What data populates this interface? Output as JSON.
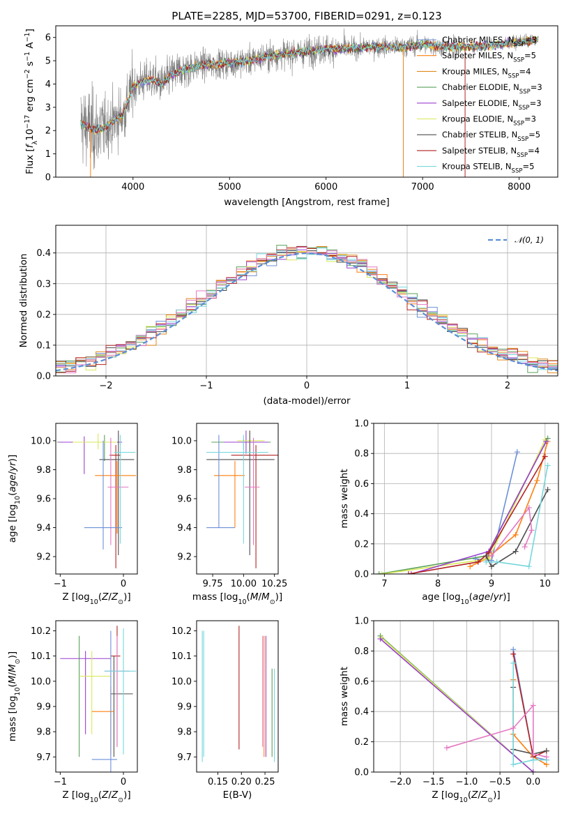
{
  "colors": {
    "chabrier_miles": "#6b8fd8",
    "salpeter_miles": "#ff7f0e",
    "kroupa_miles": "#e08a1e",
    "chabrier_elodie": "#5aa15a",
    "salpeter_elodie": "#9a3fcf",
    "kroupa_elodie": "#d9e85a",
    "chabrier_stelib": "#4d4d4d",
    "salpeter_stelib": "#b22222",
    "kroupa_stelib": "#76d7dc",
    "pink": "#e377c2",
    "data": "#808080",
    "normal": "#5b8fd6"
  },
  "chart_data": [
    {
      "id": "spectrum",
      "type": "line",
      "title": "PLATE=2285, MJD=53700, FIBERID=0291, z=0.123",
      "xlabel": "wavelength [Angstrom, rest frame]",
      "ylabel": "Flux [f_λ 10^-17 erg cm^-2 s^-1 A^-1]",
      "xlim": [
        3200,
        8400
      ],
      "ylim": [
        0,
        6.5
      ],
      "xticks": [
        4000,
        5000,
        6000,
        7000,
        8000
      ],
      "yticks": [
        0,
        1,
        2,
        3,
        4,
        5,
        6
      ],
      "legend_position": "right",
      "legend": [
        {
          "pre": "Chabrier MILES, N",
          "sub": "SSP",
          "post": "=3",
          "color": "chabrier_miles"
        },
        {
          "pre": "Salpeter MILES, N",
          "sub": "SSP",
          "post": "=5",
          "color": "salpeter_miles"
        },
        {
          "pre": "Kroupa MILES, N",
          "sub": "SSP",
          "post": "=4",
          "color": "kroupa_miles"
        },
        {
          "pre": "Chabrier ELODIE, N",
          "sub": "SSP",
          "post": "=3",
          "color": "chabrier_elodie"
        },
        {
          "pre": "Salpeter ELODIE, N",
          "sub": "SSP",
          "post": "=3",
          "color": "salpeter_elodie"
        },
        {
          "pre": "Kroupa ELODIE, N",
          "sub": "SSP",
          "post": "=3",
          "color": "kroupa_elodie"
        },
        {
          "pre": "Chabrier STELIB, N",
          "sub": "SSP",
          "post": "=5",
          "color": "chabrier_stelib"
        },
        {
          "pre": "Salpeter STELIB, N",
          "sub": "SSP",
          "post": "=4",
          "color": "salpeter_stelib"
        },
        {
          "pre": "Kroupa STELIB, N",
          "sub": "SSP",
          "post": "=5",
          "color": "kroupa_stelib"
        }
      ],
      "continuum": {
        "x": [
          3460,
          3600,
          3700,
          3800,
          3900,
          4000,
          4100,
          4200,
          4300,
          4400,
          4500,
          4700,
          5000,
          5200,
          5400,
          5600,
          5800,
          6000,
          6200,
          6500,
          6800,
          7000,
          7200,
          7500,
          7800,
          8000,
          8200
        ],
        "y": [
          2.3,
          2.0,
          2.1,
          2.4,
          2.7,
          3.9,
          4.1,
          4.2,
          4.0,
          4.4,
          4.6,
          4.8,
          4.9,
          5.0,
          5.2,
          5.3,
          5.4,
          5.5,
          5.5,
          5.6,
          5.6,
          5.7,
          5.6,
          5.6,
          5.7,
          5.8,
          5.9
        ]
      }
    },
    {
      "id": "residuals",
      "type": "line",
      "xlabel": "(data-model)/error",
      "ylabel": "Normed distribution",
      "xlim": [
        -2.5,
        2.5
      ],
      "ylim": [
        0,
        0.49
      ],
      "xticks": [
        -2,
        -1,
        0,
        1,
        2
      ],
      "yticks": [
        0.0,
        0.1,
        0.2,
        0.3,
        0.4
      ],
      "grid": true,
      "legend_position": "top-right",
      "legend_label": "𝒩(0, 1)",
      "bin_width": 0.1
    },
    {
      "id": "age_vs_Z",
      "type": "scatter",
      "xlabel": "Z [log10(Z/Z⊙)]",
      "ylabel": "age [log10(age/yr)]",
      "xlim": [
        -1.07,
        0.22
      ],
      "ylim": [
        9.08,
        10.12
      ],
      "xticks": [
        -1,
        0
      ],
      "yticks": [
        9.2,
        9.4,
        9.6,
        9.8,
        10.0
      ],
      "points": [
        {
          "x": -0.3,
          "xerr": [
            0.75,
            0.25
          ],
          "y": 9.99,
          "yerr": [
            0.13,
            0.05
          ],
          "color": "chabrier_elodie"
        },
        {
          "x": -0.62,
          "xerr": [
            0.4,
            0.6
          ],
          "y": 9.99,
          "yerr": [
            0.22,
            0.04
          ],
          "color": "salpeter_elodie"
        },
        {
          "x": -0.4,
          "xerr": [
            0.4,
            0.3
          ],
          "y": 9.99,
          "yerr": [
            0.05,
            0.06
          ],
          "color": "kroupa_elodie"
        },
        {
          "x": -0.12,
          "xerr": [
            0.1,
            0.08
          ],
          "y": 9.9,
          "yerr": [
            0.78,
            0.07
          ],
          "color": "salpeter_stelib"
        },
        {
          "x": -0.08,
          "xerr": [
            0.3,
            0.25
          ],
          "y": 9.87,
          "yerr": [
            0.66,
            0.2
          ],
          "color": "chabrier_stelib"
        },
        {
          "x": -0.1,
          "xerr": [
            0.35,
            0.3
          ],
          "y": 9.76,
          "yerr": [
            0.4,
            0.1
          ],
          "color": "salpeter_miles"
        },
        {
          "x": -0.2,
          "xerr": [
            0.05,
            0.28
          ],
          "y": 9.68,
          "yerr": [
            0.4,
            0.34
          ],
          "color": "pink"
        },
        {
          "x": -0.32,
          "xerr": [
            0.3,
            0.3
          ],
          "y": 9.4,
          "yerr": [
            0.15,
            0.6
          ],
          "color": "chabrier_miles"
        },
        {
          "x": -0.05,
          "xerr": [
            0.1,
            0.24
          ],
          "y": 9.92,
          "yerr": [
            0.63,
            0.12
          ],
          "color": "kroupa_stelib"
        }
      ]
    },
    {
      "id": "age_vs_mass",
      "type": "scatter",
      "xlabel": "mass [log10(M/M⊙)]",
      "ylabel": "",
      "xlim": [
        9.62,
        10.28
      ],
      "ylim": [
        9.08,
        10.12
      ],
      "xticks": [
        9.75,
        10.0,
        10.25
      ],
      "yticks": [
        9.2,
        9.4,
        9.6,
        9.8,
        10.0
      ],
      "points": [
        {
          "x": 10.0,
          "xerr": [
            0.26,
            0.22
          ],
          "y": 9.99,
          "yerr": [
            0.05,
            0.02
          ],
          "color": "chabrier_elodie"
        },
        {
          "x": 10.02,
          "xerr": [
            0.18,
            0.18
          ],
          "y": 9.99,
          "yerr": [
            0.08,
            0.08
          ],
          "color": "salpeter_elodie"
        },
        {
          "x": 10.05,
          "xerr": [
            0.1,
            0.12
          ],
          "y": 10.0,
          "yerr": [
            0.07,
            0.07
          ],
          "color": "kroupa_elodie"
        },
        {
          "x": 10.1,
          "xerr": [
            0.2,
            0.2
          ],
          "y": 9.9,
          "yerr": [
            0.78,
            0.07
          ],
          "color": "salpeter_stelib"
        },
        {
          "x": 10.05,
          "xerr": [
            0.35,
            0.2
          ],
          "y": 9.87,
          "yerr": [
            0.66,
            0.2
          ],
          "color": "chabrier_stelib"
        },
        {
          "x": 9.93,
          "xerr": [
            0.17,
            0.08
          ],
          "y": 9.76,
          "yerr": [
            0.36,
            0.1
          ],
          "color": "salpeter_miles"
        },
        {
          "x": 10.08,
          "xerr": [
            0.07,
            0.05
          ],
          "y": 9.68,
          "yerr": [
            0.4,
            0.34
          ],
          "color": "pink"
        },
        {
          "x": 9.8,
          "xerr": [
            0.1,
            0.13
          ],
          "y": 9.4,
          "yerr": [
            0.0,
            0.64
          ],
          "color": "chabrier_miles"
        },
        {
          "x": 10.0,
          "xerr": [
            0.3,
            0.2
          ],
          "y": 9.92,
          "yerr": [
            0.63,
            0.12
          ],
          "color": "kroupa_stelib"
        }
      ]
    },
    {
      "id": "mass_weight_vs_age",
      "type": "line",
      "xlabel": "age [log10(age/yr)]",
      "ylabel": "mass weight",
      "xlim": [
        6.8,
        10.25
      ],
      "ylim": [
        0,
        1.0
      ],
      "xticks": [
        7,
        8,
        9,
        10
      ],
      "yticks": [
        0.0,
        0.2,
        0.4,
        0.6,
        0.8,
        1.0
      ],
      "grid": true,
      "series": [
        {
          "color": "chabrier_miles",
          "x": [
            8.7,
            9.0,
            9.48
          ],
          "y": [
            0.1,
            0.09,
            0.81
          ]
        },
        {
          "color": "salpeter_miles",
          "x": [
            8.6,
            8.9,
            9.45,
            9.85,
            10.05
          ],
          "y": [
            0.05,
            0.1,
            0.26,
            0.62,
            0.88
          ]
        },
        {
          "color": "chabrier_elodie",
          "x": [
            6.9,
            8.9,
            10.05
          ],
          "y": [
            0.0,
            0.12,
            0.9
          ]
        },
        {
          "color": "kroupa_elodie",
          "x": [
            6.95,
            8.95,
            10.0
          ],
          "y": [
            0.0,
            0.1,
            0.89
          ]
        },
        {
          "color": "salpeter_elodie",
          "x": [
            7.5,
            8.95,
            10.02
          ],
          "y": [
            0.0,
            0.15,
            0.88
          ]
        },
        {
          "color": "salpeter_stelib",
          "x": [
            7.45,
            8.75,
            8.95,
            10.0
          ],
          "y": [
            0.0,
            0.08,
            0.14,
            0.78
          ]
        },
        {
          "color": "chabrier_stelib",
          "x": [
            8.9,
            9.0,
            9.45,
            10.05
          ],
          "y": [
            0.12,
            0.05,
            0.15,
            0.56
          ]
        },
        {
          "color": "kroupa_stelib",
          "x": [
            8.9,
            9.1,
            9.7,
            10.05
          ],
          "y": [
            0.08,
            0.08,
            0.05,
            0.72
          ]
        },
        {
          "color": "pink",
          "x": [
            9.0,
            9.7,
            9.75,
            9.62
          ],
          "y": [
            0.12,
            0.44,
            0.29,
            0.18
          ]
        }
      ]
    },
    {
      "id": "mass_vs_Z",
      "type": "scatter",
      "xlabel": "Z [log10(Z/Z⊙)]",
      "ylabel": "mass [log10(M/M⊙)]",
      "xlim": [
        -1.07,
        0.22
      ],
      "ylim": [
        9.64,
        10.24
      ],
      "xticks": [
        -1,
        0
      ],
      "yticks": [
        9.7,
        9.8,
        9.9,
        10.0,
        10.1,
        10.2
      ],
      "points": [
        {
          "x": -0.7,
          "xerr": [
            0.0,
            0.0
          ],
          "y": 10.0,
          "yerr": [
            0.3,
            0.18
          ],
          "color": "chabrier_elodie"
        },
        {
          "x": -0.6,
          "xerr": [
            0.4,
            0.4
          ],
          "y": 10.09,
          "yerr": [
            0.3,
            0.03
          ],
          "color": "salpeter_elodie"
        },
        {
          "x": -0.5,
          "xerr": [
            0.2,
            0.3
          ],
          "y": 10.02,
          "yerr": [
            0.23,
            0.1
          ],
          "color": "kroupa_elodie"
        },
        {
          "x": -0.1,
          "xerr": [
            0.1,
            0.05
          ],
          "y": 10.1,
          "yerr": [
            0.36,
            0.12
          ],
          "color": "salpeter_stelib"
        },
        {
          "x": -0.15,
          "xerr": [
            0.05,
            0.3
          ],
          "y": 9.95,
          "yerr": [
            0.25,
            0.15
          ],
          "color": "chabrier_stelib"
        },
        {
          "x": -0.2,
          "xerr": [
            0.3,
            0.05
          ],
          "y": 9.88,
          "yerr": [
            0.17,
            0.1
          ],
          "color": "salpeter_miles"
        },
        {
          "x": -0.1,
          "xerr": [
            0.2,
            0.2
          ],
          "y": 10.04,
          "yerr": [
            0.3,
            0.14
          ],
          "color": "pink"
        },
        {
          "x": -0.2,
          "xerr": [
            0.3,
            0.1
          ],
          "y": 9.69,
          "yerr": [
            0.05,
            0.51
          ],
          "color": "chabrier_miles"
        },
        {
          "x": 0.0,
          "xerr": [
            0.3,
            0.2
          ],
          "y": 10.04,
          "yerr": [
            0.33,
            0.17
          ],
          "color": "kroupa_stelib"
        }
      ]
    },
    {
      "id": "mass_vs_ebv",
      "type": "scatter",
      "xlabel": "E(B-V)",
      "ylabel": "",
      "xlim": [
        0.105,
        0.278
      ],
      "ylim": [
        9.64,
        10.24
      ],
      "xticks": [
        0.15,
        0.2,
        0.25
      ],
      "yticks": [
        9.7,
        9.8,
        9.9,
        10.0,
        10.1,
        10.2
      ],
      "vlines": [
        {
          "x": 0.117,
          "y": [
            9.68,
            10.2
          ],
          "color": "kroupa_stelib"
        },
        {
          "x": 0.12,
          "y": [
            9.7,
            10.2
          ],
          "color": "kroupa_stelib"
        },
        {
          "x": 0.195,
          "y": [
            9.73,
            10.22
          ],
          "color": "salpeter_stelib"
        },
        {
          "x": 0.245,
          "y": [
            9.74,
            10.18
          ],
          "color": "pink"
        },
        {
          "x": 0.248,
          "y": [
            9.7,
            10.18
          ],
          "color": "salpeter_miles"
        },
        {
          "x": 0.252,
          "y": [
            9.7,
            10.18
          ],
          "color": "salpeter_elodie"
        },
        {
          "x": 0.265,
          "y": [
            9.7,
            10.05
          ],
          "color": "chabrier_elodie"
        },
        {
          "x": 0.27,
          "y": [
            9.68,
            10.05
          ],
          "color": "kroupa_stelib"
        }
      ]
    },
    {
      "id": "mass_weight_vs_Z",
      "type": "line",
      "xlabel": "Z [log10(Z/Z⊙)]",
      "ylabel": "mass weight",
      "xlim": [
        -2.4,
        0.38
      ],
      "ylim": [
        0,
        1.0
      ],
      "xticks": [
        -2.0,
        -1.5,
        -1.0,
        -0.5,
        0.0
      ],
      "yticks": [
        0.0,
        0.2,
        0.4,
        0.6,
        0.8,
        1.0
      ],
      "grid": true,
      "series": [
        {
          "color": "chabrier_miles",
          "x": [
            -0.3,
            0.0,
            0.2
          ],
          "y": [
            0.81,
            0.1,
            0.08
          ]
        },
        {
          "color": "salpeter_miles",
          "x": [
            -0.3,
            -0.3,
            0.0,
            0.2
          ],
          "y": [
            0.61,
            0.25,
            0.1,
            0.05
          ]
        },
        {
          "color": "chabrier_elodie",
          "x": [
            -2.3,
            0.0
          ],
          "y": [
            0.9,
            0.0
          ]
        },
        {
          "color": "kroupa_elodie",
          "x": [
            -2.29,
            0.0
          ],
          "y": [
            0.89,
            0.0
          ]
        },
        {
          "color": "salpeter_elodie",
          "x": [
            -2.3,
            0.0
          ],
          "y": [
            0.88,
            0.0
          ]
        },
        {
          "color": "salpeter_stelib",
          "x": [
            -0.3,
            0.0,
            0.2
          ],
          "y": [
            0.78,
            0.1,
            0.14
          ]
        },
        {
          "color": "chabrier_stelib",
          "x": [
            -0.3,
            -0.3,
            0.0,
            0.2
          ],
          "y": [
            0.56,
            0.15,
            0.12,
            0.14
          ]
        },
        {
          "color": "kroupa_stelib",
          "x": [
            -0.3,
            -0.3,
            0.0,
            0.2
          ],
          "y": [
            0.72,
            0.05,
            0.08,
            0.08
          ]
        },
        {
          "color": "pink",
          "x": [
            -1.3,
            -0.3,
            0.0,
            0.0,
            0.2
          ],
          "y": [
            0.16,
            0.29,
            0.44,
            0.12,
            0.1
          ]
        }
      ]
    }
  ]
}
